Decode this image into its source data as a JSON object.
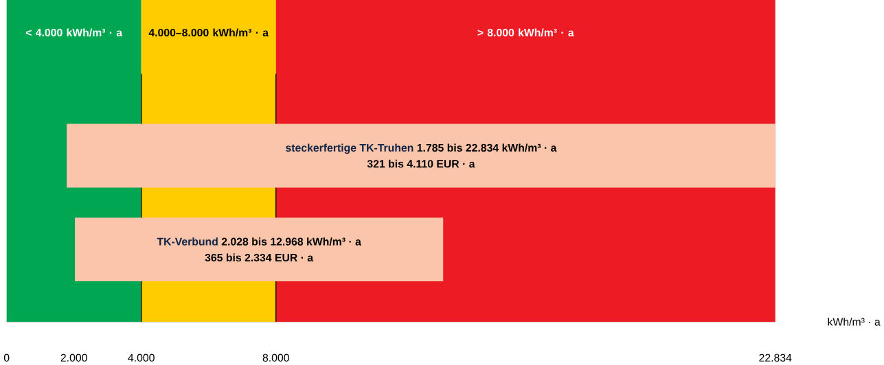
{
  "chart_data": {
    "type": "bar",
    "orientation": "horizontal",
    "categories": [
      "steckerfertige TK-Truhen",
      "TK-Verbund"
    ],
    "base": [
      1785,
      2028
    ],
    "values": [
      21049,
      10940
    ],
    "color": "#fac5aa",
    "annotations": [
      "1.785 bis 22.834 kWh/m³ · a",
      "321 bis 4.110 EUR · a",
      "2.028 bis 12.968 kWh/m³ · a",
      "365 bis 2.334 EUR · a"
    ],
    "bands": [
      {
        "axis": "x",
        "from": 0,
        "to": 4000,
        "label": "< 4.000 kWh/m³ · a",
        "color": "#00a651"
      },
      {
        "axis": "x",
        "from": 4000,
        "to": 8000,
        "label": "4.000–8.000 kWh/m³ · a",
        "color": "#ffcc00"
      },
      {
        "axis": "x",
        "from": 8000,
        "to": 22834,
        "label": "> 8.000 kWh/m³ · a",
        "color": "#ed1c24"
      }
    ],
    "ref_lines": [
      {
        "axis": "x",
        "value": 4000,
        "color": "#000000"
      },
      {
        "axis": "x",
        "value": 8000,
        "color": "#000000"
      }
    ],
    "xlim": [
      0,
      22834
    ],
    "xticks": [
      0,
      {
        "value": 2000,
        "label": "2.000"
      },
      {
        "value": 4000,
        "label": "4.000"
      },
      {
        "value": 8000,
        "label": "8.000"
      },
      {
        "value": 22834,
        "label": "22.834"
      }
    ],
    "xlabel": "kWh/m³ · a",
    "tick_labels": "x"
  }
}
